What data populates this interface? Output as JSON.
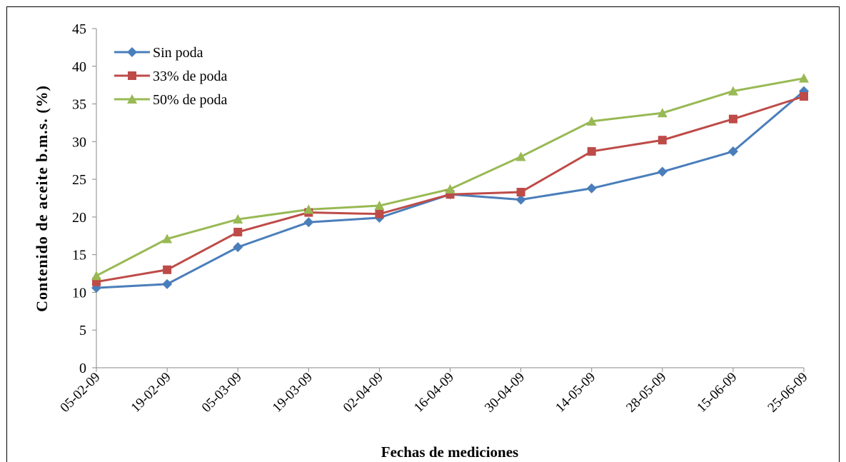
{
  "chart_data": {
    "type": "line",
    "x_label": "Fechas de mediciones",
    "y_label": "Contenido de aceite b.m.s. (%)",
    "categories": [
      "05-02-09",
      "19-02-09",
      "05-03-09",
      "19-03-09",
      "02-04-09",
      "16-04-09",
      "30-04-09",
      "14-05-09",
      "28-05-09",
      "15-06-09",
      "25-06-09"
    ],
    "series": [
      {
        "name": "Sin poda",
        "color": "#4a7ebb",
        "marker": "diamond",
        "values": [
          10.6,
          11.1,
          16,
          19.3,
          19.9,
          23,
          22.3,
          23.8,
          26,
          28.7,
          36.7
        ]
      },
      {
        "name": "33% de poda",
        "color": "#be4b48",
        "marker": "square",
        "values": [
          11.4,
          13,
          18,
          20.6,
          20.4,
          23,
          23.3,
          28.7,
          30.2,
          33,
          36
        ]
      },
      {
        "name": "50% de poda",
        "color": "#98b954",
        "marker": "triangle",
        "values": [
          12.2,
          17.1,
          19.7,
          21,
          21.5,
          23.7,
          28,
          32.7,
          33.8,
          36.7,
          38.4
        ]
      }
    ],
    "ylim": [
      0,
      45
    ],
    "yticks": [
      0,
      5,
      10,
      15,
      20,
      25,
      30,
      35,
      40,
      45
    ],
    "grid": false,
    "legend": "top-left"
  }
}
